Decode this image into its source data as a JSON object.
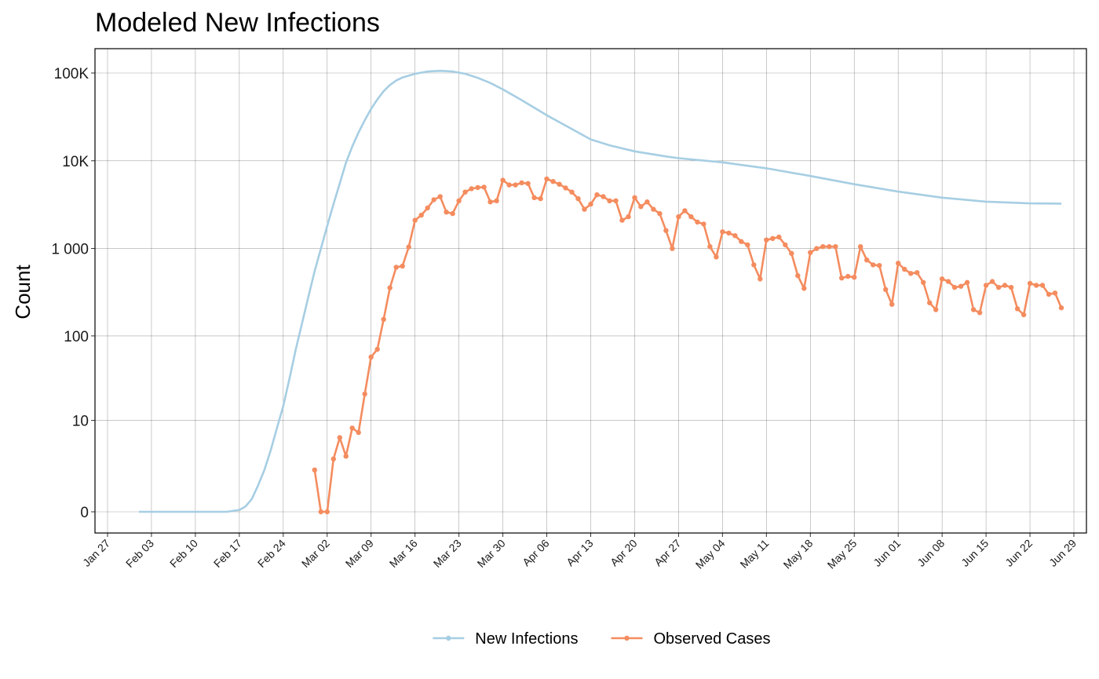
{
  "chart_data": {
    "type": "line",
    "title": "Modeled New Infections",
    "xlabel": "",
    "ylabel": "Count",
    "y_scale": "log(1+y)",
    "y_ticks": [
      0,
      10,
      100,
      1000,
      10000,
      100000
    ],
    "y_tick_labels": [
      "0",
      "10",
      "100",
      "1 000",
      "10K",
      "100K"
    ],
    "x_range": [
      "2020-01-25",
      "2020-07-01"
    ],
    "x_ticks": [
      "2020-01-27",
      "2020-02-03",
      "2020-02-10",
      "2020-02-17",
      "2020-02-24",
      "2020-03-02",
      "2020-03-09",
      "2020-03-16",
      "2020-03-23",
      "2020-03-30",
      "2020-04-06",
      "2020-04-13",
      "2020-04-20",
      "2020-04-27",
      "2020-05-04",
      "2020-05-11",
      "2020-05-18",
      "2020-05-25",
      "2020-06-01",
      "2020-06-08",
      "2020-06-15",
      "2020-06-22",
      "2020-06-29"
    ],
    "x_tick_labels": [
      "Jan 27",
      "Feb 03",
      "Feb 10",
      "Feb 17",
      "Feb 24",
      "Mar 02",
      "Mar 09",
      "Mar 16",
      "Mar 23",
      "Mar 30",
      "Apr 06",
      "Apr 13",
      "Apr 20",
      "Apr 27",
      "May 04",
      "May 11",
      "May 18",
      "May 25",
      "Jun 01",
      "Jun 08",
      "Jun 15",
      "Jun 22",
      "Jun 29"
    ],
    "grid": true,
    "legend_position": "bottom",
    "series": [
      {
        "name": "New Infections",
        "color": "#a6cee3",
        "markers": false,
        "points": [
          [
            "2020-02-01",
            0
          ],
          [
            "2020-02-10",
            0
          ],
          [
            "2020-02-15",
            0
          ],
          [
            "2020-02-17",
            0.05
          ],
          [
            "2020-02-18",
            0.15
          ],
          [
            "2020-02-19",
            0.4
          ],
          [
            "2020-02-20",
            1
          ],
          [
            "2020-02-21",
            2
          ],
          [
            "2020-02-22",
            4
          ],
          [
            "2020-02-23",
            8
          ],
          [
            "2020-02-24",
            15
          ],
          [
            "2020-02-25",
            32
          ],
          [
            "2020-02-26",
            70
          ],
          [
            "2020-02-27",
            140
          ],
          [
            "2020-02-28",
            280
          ],
          [
            "2020-02-29",
            550
          ],
          [
            "2020-03-01",
            1000
          ],
          [
            "2020-03-02",
            1800
          ],
          [
            "2020-03-03",
            3200
          ],
          [
            "2020-03-04",
            5500
          ],
          [
            "2020-03-05",
            9500
          ],
          [
            "2020-03-06",
            14500
          ],
          [
            "2020-03-07",
            21000
          ],
          [
            "2020-03-08",
            29000
          ],
          [
            "2020-03-09",
            39000
          ],
          [
            "2020-03-10",
            50000
          ],
          [
            "2020-03-11",
            62000
          ],
          [
            "2020-03-12",
            73000
          ],
          [
            "2020-03-13",
            82000
          ],
          [
            "2020-03-14",
            89000
          ],
          [
            "2020-03-16",
            98000
          ],
          [
            "2020-03-18",
            104000
          ],
          [
            "2020-03-20",
            106000
          ],
          [
            "2020-03-22",
            104000
          ],
          [
            "2020-03-24",
            98000
          ],
          [
            "2020-03-26",
            88000
          ],
          [
            "2020-03-28",
            77000
          ],
          [
            "2020-03-30",
            65000
          ],
          [
            "2020-04-02",
            49000
          ],
          [
            "2020-04-06",
            33000
          ],
          [
            "2020-04-10",
            23000
          ],
          [
            "2020-04-13",
            17500
          ],
          [
            "2020-04-16",
            15000
          ],
          [
            "2020-04-20",
            12800
          ],
          [
            "2020-04-25",
            11200
          ],
          [
            "2020-04-27",
            10700
          ],
          [
            "2020-05-04",
            9600
          ],
          [
            "2020-05-11",
            8200
          ],
          [
            "2020-05-18",
            6700
          ],
          [
            "2020-05-25",
            5400
          ],
          [
            "2020-06-01",
            4450
          ],
          [
            "2020-06-08",
            3800
          ],
          [
            "2020-06-15",
            3420
          ],
          [
            "2020-06-22",
            3270
          ],
          [
            "2020-06-27",
            3250
          ]
        ]
      },
      {
        "name": "Observed Cases",
        "color": "#f48c5f",
        "markers": true,
        "points": [
          [
            "2020-02-29",
            2
          ],
          [
            "2020-03-01",
            0
          ],
          [
            "2020-03-02",
            0
          ],
          [
            "2020-03-03",
            3
          ],
          [
            "2020-03-04",
            6
          ],
          [
            "2020-03-05",
            3.3
          ],
          [
            "2020-03-06",
            8
          ],
          [
            "2020-03-07",
            7
          ],
          [
            "2020-03-08",
            21
          ],
          [
            "2020-03-09",
            57
          ],
          [
            "2020-03-10",
            70
          ],
          [
            "2020-03-11",
            155
          ],
          [
            "2020-03-12",
            355
          ],
          [
            "2020-03-13",
            610
          ],
          [
            "2020-03-14",
            630
          ],
          [
            "2020-03-15",
            1040
          ],
          [
            "2020-03-16",
            2100
          ],
          [
            "2020-03-17",
            2400
          ],
          [
            "2020-03-18",
            2900
          ],
          [
            "2020-03-19",
            3600
          ],
          [
            "2020-03-20",
            3900
          ],
          [
            "2020-03-21",
            2600
          ],
          [
            "2020-03-22",
            2500
          ],
          [
            "2020-03-23",
            3500
          ],
          [
            "2020-03-24",
            4400
          ],
          [
            "2020-03-25",
            4800
          ],
          [
            "2020-03-26",
            4950
          ],
          [
            "2020-03-27",
            5000
          ],
          [
            "2020-03-28",
            3400
          ],
          [
            "2020-03-29",
            3500
          ],
          [
            "2020-03-30",
            6000
          ],
          [
            "2020-03-31",
            5300
          ],
          [
            "2020-04-01",
            5300
          ],
          [
            "2020-04-02",
            5600
          ],
          [
            "2020-04-03",
            5500
          ],
          [
            "2020-04-04",
            3800
          ],
          [
            "2020-04-05",
            3700
          ],
          [
            "2020-04-06",
            6200
          ],
          [
            "2020-04-07",
            5800
          ],
          [
            "2020-04-08",
            5400
          ],
          [
            "2020-04-09",
            4900
          ],
          [
            "2020-04-10",
            4400
          ],
          [
            "2020-04-11",
            3700
          ],
          [
            "2020-04-12",
            2800
          ],
          [
            "2020-04-13",
            3200
          ],
          [
            "2020-04-14",
            4100
          ],
          [
            "2020-04-15",
            3900
          ],
          [
            "2020-04-16",
            3500
          ],
          [
            "2020-04-17",
            3500
          ],
          [
            "2020-04-18",
            2100
          ],
          [
            "2020-04-19",
            2300
          ],
          [
            "2020-04-20",
            3800
          ],
          [
            "2020-04-21",
            3000
          ],
          [
            "2020-04-22",
            3400
          ],
          [
            "2020-04-23",
            2800
          ],
          [
            "2020-04-24",
            2500
          ],
          [
            "2020-04-25",
            1600
          ],
          [
            "2020-04-26",
            1000
          ],
          [
            "2020-04-27",
            2300
          ],
          [
            "2020-04-28",
            2700
          ],
          [
            "2020-04-29",
            2300
          ],
          [
            "2020-04-30",
            2000
          ],
          [
            "2020-05-01",
            1900
          ],
          [
            "2020-05-02",
            1050
          ],
          [
            "2020-05-03",
            800
          ],
          [
            "2020-05-04",
            1550
          ],
          [
            "2020-05-05",
            1500
          ],
          [
            "2020-05-06",
            1400
          ],
          [
            "2020-05-07",
            1200
          ],
          [
            "2020-05-08",
            1100
          ],
          [
            "2020-05-09",
            650
          ],
          [
            "2020-05-10",
            450
          ],
          [
            "2020-05-11",
            1250
          ],
          [
            "2020-05-12",
            1300
          ],
          [
            "2020-05-13",
            1350
          ],
          [
            "2020-05-14",
            1100
          ],
          [
            "2020-05-15",
            880
          ],
          [
            "2020-05-16",
            490
          ],
          [
            "2020-05-17",
            350
          ],
          [
            "2020-05-18",
            900
          ],
          [
            "2020-05-19",
            1000
          ],
          [
            "2020-05-20",
            1050
          ],
          [
            "2020-05-21",
            1050
          ],
          [
            "2020-05-22",
            1050
          ],
          [
            "2020-05-23",
            460
          ],
          [
            "2020-05-24",
            480
          ],
          [
            "2020-05-25",
            470
          ],
          [
            "2020-05-26",
            1050
          ],
          [
            "2020-05-27",
            740
          ],
          [
            "2020-05-28",
            650
          ],
          [
            "2020-05-29",
            640
          ],
          [
            "2020-05-30",
            340
          ],
          [
            "2020-05-31",
            230
          ],
          [
            "2020-06-01",
            680
          ],
          [
            "2020-06-02",
            580
          ],
          [
            "2020-06-03",
            520
          ],
          [
            "2020-06-04",
            530
          ],
          [
            "2020-06-05",
            410
          ],
          [
            "2020-06-06",
            240
          ],
          [
            "2020-06-07",
            200
          ],
          [
            "2020-06-08",
            450
          ],
          [
            "2020-06-09",
            420
          ],
          [
            "2020-06-10",
            360
          ],
          [
            "2020-06-11",
            370
          ],
          [
            "2020-06-12",
            410
          ],
          [
            "2020-06-13",
            200
          ],
          [
            "2020-06-14",
            185
          ],
          [
            "2020-06-15",
            380
          ],
          [
            "2020-06-16",
            420
          ],
          [
            "2020-06-17",
            360
          ],
          [
            "2020-06-18",
            380
          ],
          [
            "2020-06-19",
            360
          ],
          [
            "2020-06-20",
            205
          ],
          [
            "2020-06-21",
            175
          ],
          [
            "2020-06-22",
            400
          ],
          [
            "2020-06-23",
            380
          ],
          [
            "2020-06-24",
            380
          ],
          [
            "2020-06-25",
            300
          ],
          [
            "2020-06-26",
            310
          ],
          [
            "2020-06-27",
            210
          ]
        ]
      }
    ]
  }
}
